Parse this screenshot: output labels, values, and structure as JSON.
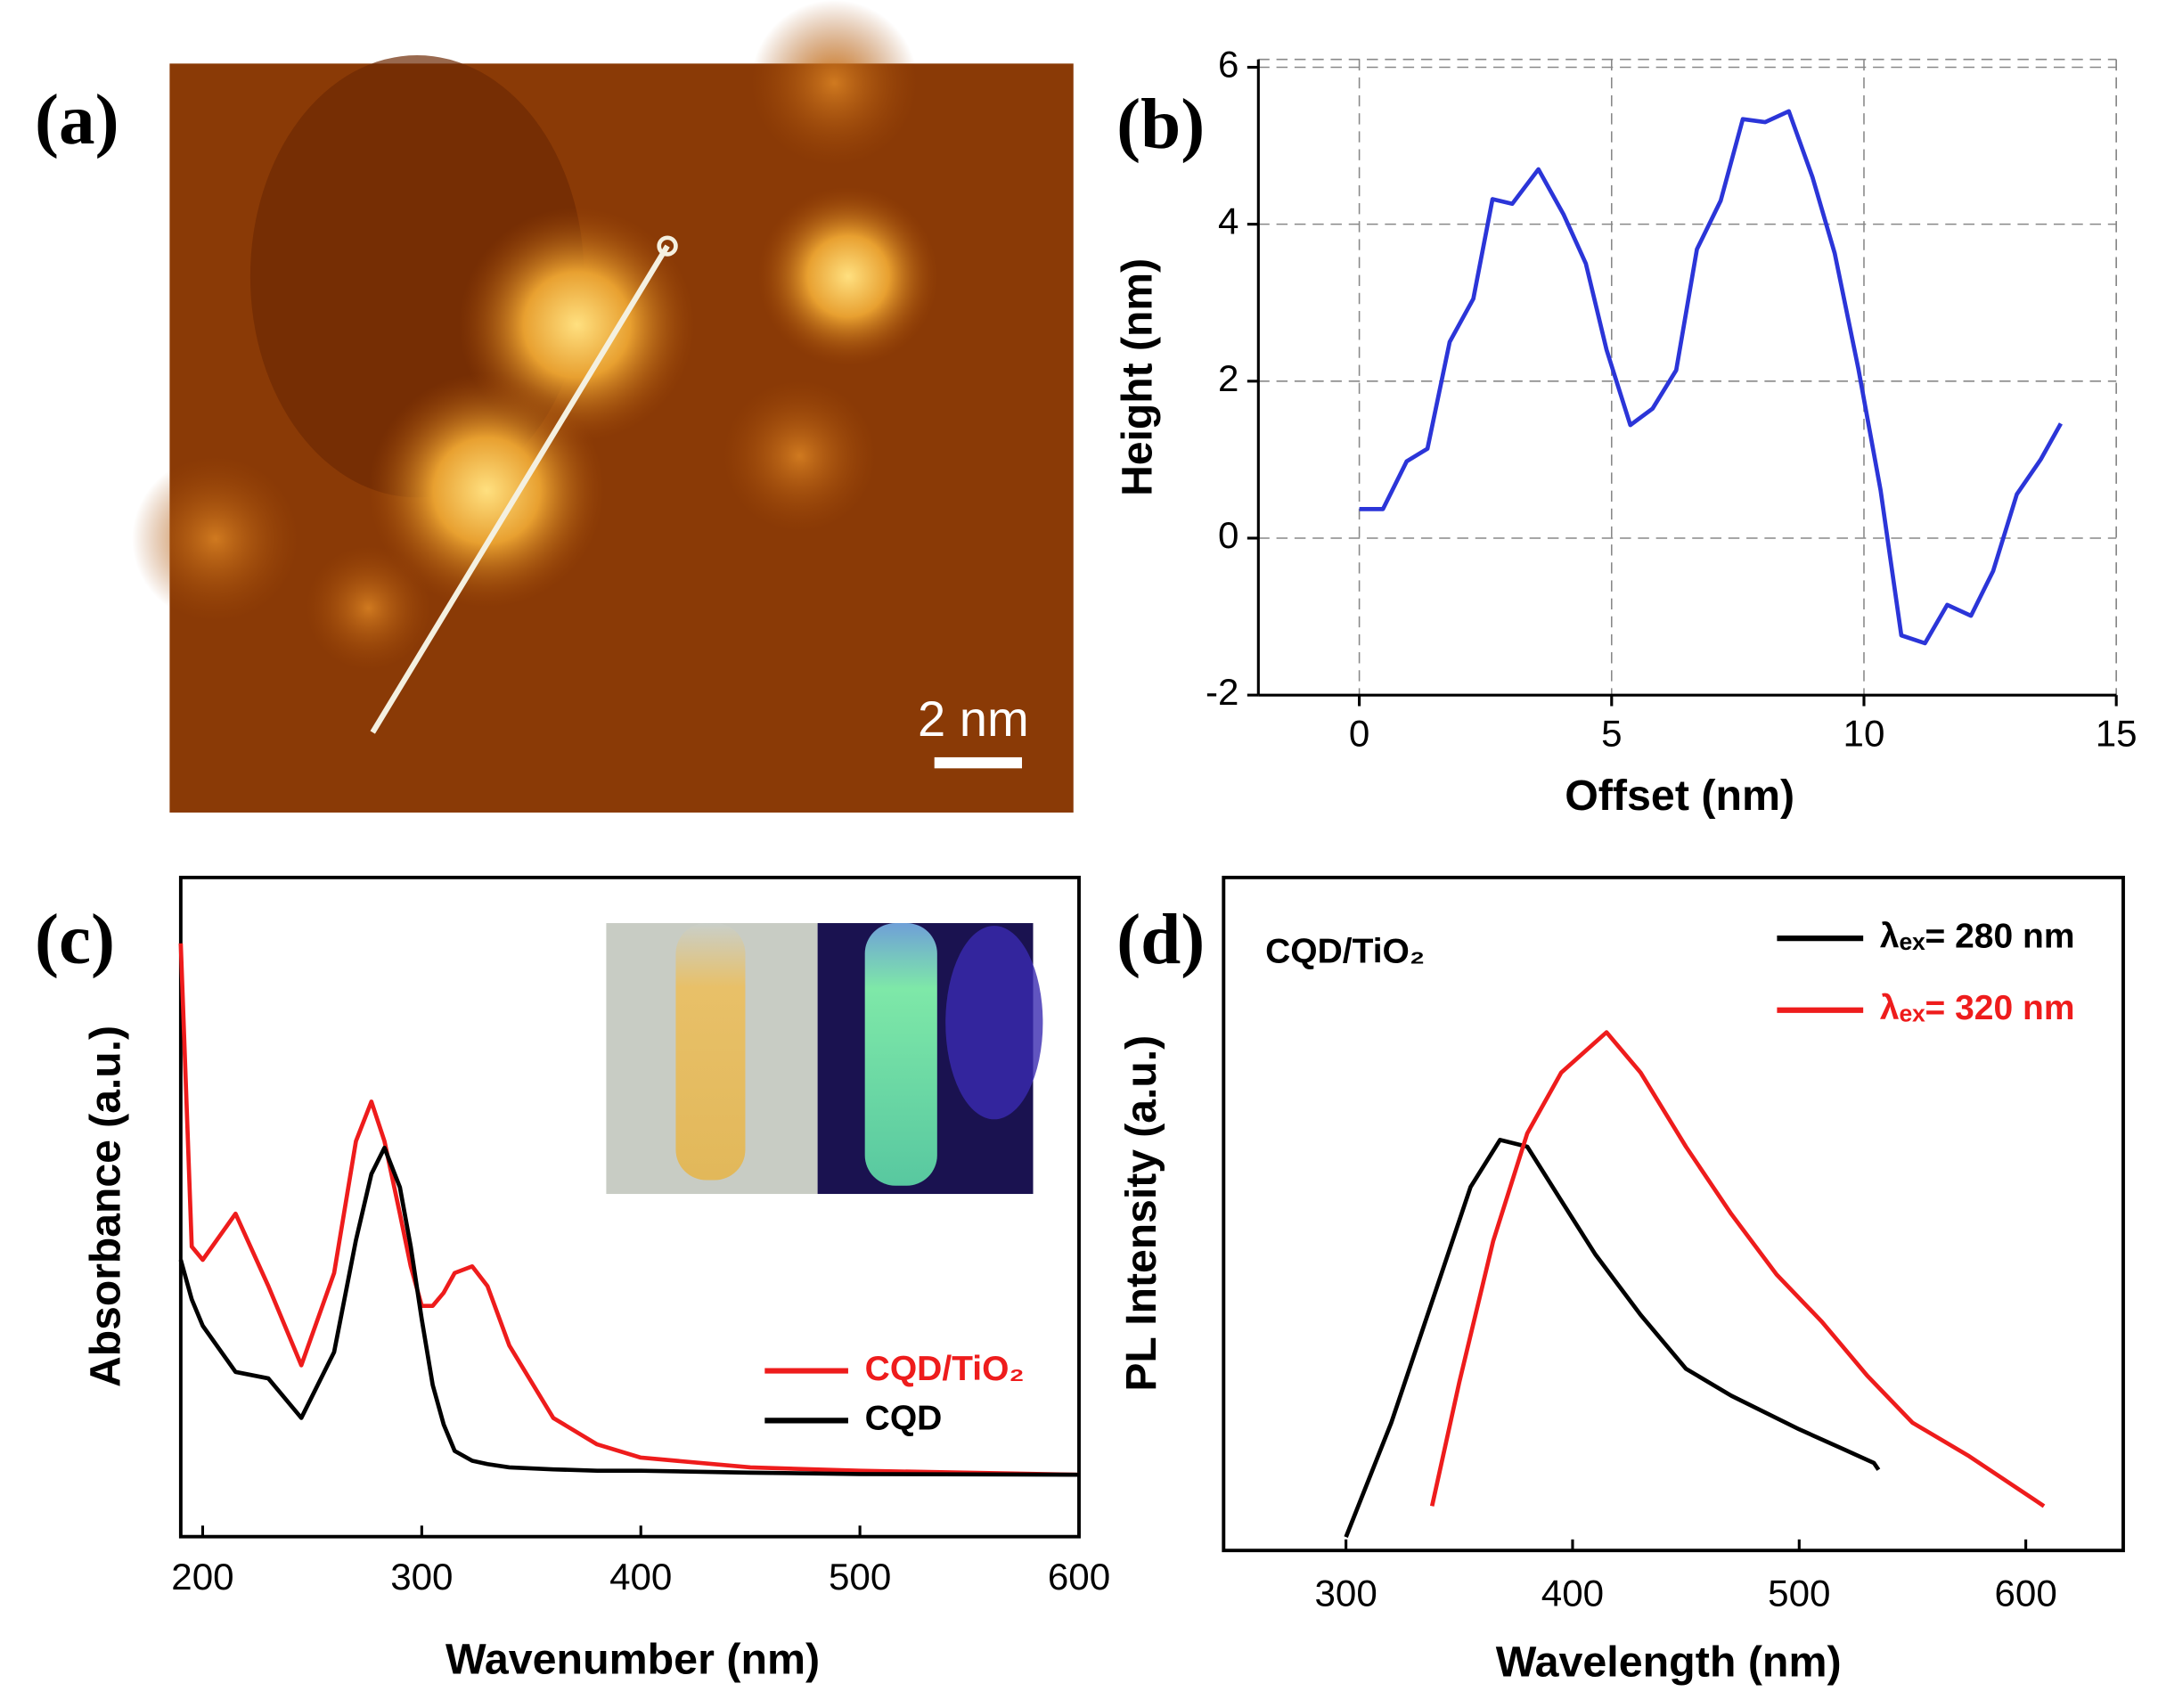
{
  "panel_a": {
    "panel_label": "(a)",
    "scale_bar": "2 nm"
  },
  "chart_data": [
    {
      "type": "line",
      "panel_label": "(b)",
      "xlabel": "Offset (nm)",
      "ylabel": "Height (nm)",
      "xlim": [
        -2,
        15
      ],
      "ylim": [
        -2,
        6.1
      ],
      "xticks": [
        0,
        5,
        10,
        15
      ],
      "yticks": [
        -2,
        0,
        2,
        4,
        6
      ],
      "grid": true,
      "x": [
        0,
        0.47,
        0.94,
        1.35,
        1.79,
        2.26,
        2.64,
        3.03,
        3.55,
        4.05,
        4.49,
        4.9,
        5.37,
        5.81,
        6.28,
        6.69,
        7.16,
        7.6,
        8.04,
        8.51,
        8.98,
        9.42,
        9.89,
        10.33,
        10.74,
        11.21,
        11.65,
        12.12,
        12.56,
        13.03,
        13.5,
        13.9
      ],
      "series": [
        {
          "name": null,
          "color": "#2b35d8",
          "values": [
            0.37,
            0.37,
            0.98,
            1.14,
            2.5,
            3.05,
            4.32,
            4.26,
            4.7,
            4.12,
            3.5,
            2.4,
            1.44,
            1.65,
            2.14,
            3.68,
            4.3,
            5.34,
            5.3,
            5.44,
            4.6,
            3.63,
            2.16,
            0.61,
            -1.24,
            -1.34,
            -0.85,
            -0.99,
            -0.42,
            0.56,
            1.0,
            1.46
          ]
        }
      ]
    },
    {
      "type": "line",
      "panel_label": "(c)",
      "xlabel": "Wavenumber (nm)",
      "ylabel": "Absorbance (a.u.)",
      "xlim": [
        190,
        600
      ],
      "ylim": [
        0,
        1
      ],
      "xticks": [
        200,
        300,
        400,
        500,
        600
      ],
      "grid": false,
      "x": [
        190,
        195,
        200,
        215,
        230,
        245,
        260,
        270,
        277,
        283,
        290,
        295,
        300,
        305,
        310,
        315,
        323,
        330,
        340,
        360,
        380,
        400,
        450,
        500,
        600
      ],
      "series": [
        {
          "name": "CQD/TiO₂",
          "color": "#ee1c1c",
          "values": [
            0.9,
            0.44,
            0.42,
            0.49,
            0.38,
            0.26,
            0.4,
            0.6,
            0.66,
            0.6,
            0.49,
            0.41,
            0.35,
            0.35,
            0.37,
            0.4,
            0.41,
            0.38,
            0.29,
            0.18,
            0.14,
            0.12,
            0.105,
            0.1,
            0.094
          ]
        },
        {
          "name": "CQD",
          "color": "#000000",
          "values": [
            0.42,
            0.36,
            0.32,
            0.25,
            0.24,
            0.18,
            0.28,
            0.45,
            0.55,
            0.59,
            0.53,
            0.44,
            0.33,
            0.23,
            0.17,
            0.13,
            0.115,
            0.11,
            0.105,
            0.102,
            0.1,
            0.1,
            0.097,
            0.095,
            0.094
          ]
        }
      ]
    },
    {
      "type": "line",
      "panel_label": "(d)",
      "xlabel": "Wavelength (nm)",
      "ylabel": "PL Intensity (a.u.)",
      "annotation": "CQD/TiO₂",
      "xlim": [
        246,
        643
      ],
      "ylim": [
        0,
        1
      ],
      "xticks": [
        300,
        400,
        500,
        600
      ],
      "grid": false,
      "x": [
        300,
        320,
        340,
        355,
        368,
        380,
        395,
        410,
        430,
        450,
        470,
        500,
        520,
        533,
        535
      ],
      "series": [
        {
          "name": "λₑₓ= 280 nm",
          "color": "#000000",
          "values": [
            0.02,
            0.19,
            0.39,
            0.54,
            0.61,
            0.6,
            0.52,
            0.44,
            0.35,
            0.27,
            0.23,
            0.18,
            0.15,
            0.13,
            0.12
          ]
        },
        {
          "name": "λₑₓ= 320 nm",
          "color": "#ee1c1c",
          "x": [
            338,
            350,
            365,
            380,
            395,
            415,
            430,
            450,
            470,
            490,
            510,
            530,
            550,
            575,
            608
          ],
          "values": [
            0.066,
            0.25,
            0.46,
            0.62,
            0.71,
            0.77,
            0.71,
            0.6,
            0.5,
            0.41,
            0.34,
            0.26,
            0.19,
            0.14,
            0.066
          ]
        }
      ]
    }
  ]
}
